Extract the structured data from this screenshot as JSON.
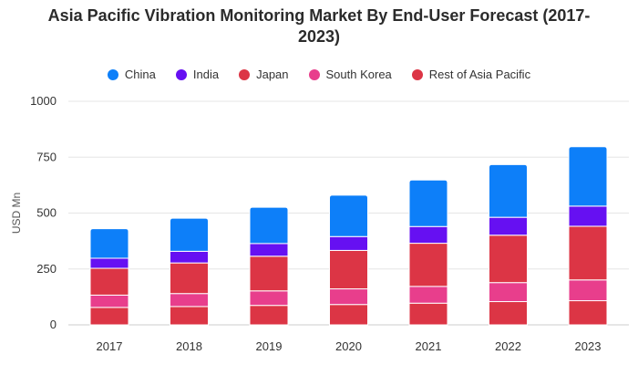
{
  "chart_data": {
    "type": "bar",
    "stacked": true,
    "title_lines": [
      "Asia Pacific Vibration Monitoring Market By End-User Forecast (2017-",
      "2023)"
    ],
    "xlabel": "",
    "ylabel": "USD Mn",
    "ylim": [
      0,
      1000
    ],
    "yticks": [
      "0",
      "250",
      "500",
      "750",
      "1000"
    ],
    "ytick_values": [
      0,
      250,
      500,
      750,
      1000
    ],
    "grid": true,
    "legend_position": "top-center",
    "categories": [
      "2017",
      "2018",
      "2019",
      "2020",
      "2021",
      "2022",
      "2023"
    ],
    "series": [
      {
        "name": "Rest of Asia Pacific",
        "color": "#dc3545",
        "values": [
          78,
          82,
          87,
          91,
          97,
          104,
          108
        ]
      },
      {
        "name": "South Korea",
        "color": "#e83e8c",
        "values": [
          55,
          58,
          65,
          70,
          75,
          85,
          93
        ]
      },
      {
        "name": "Japan",
        "color": "#dc3545",
        "values": [
          120,
          137,
          155,
          172,
          193,
          212,
          240
        ]
      },
      {
        "name": "India",
        "color": "#6610f2",
        "values": [
          45,
          52,
          57,
          62,
          75,
          80,
          90
        ]
      },
      {
        "name": "China",
        "color": "#0d7ff9",
        "values": [
          132,
          148,
          162,
          185,
          208,
          236,
          266
        ]
      }
    ],
    "legend_order": [
      "China",
      "India",
      "Japan",
      "South Korea",
      "Rest of Asia Pacific"
    ]
  }
}
